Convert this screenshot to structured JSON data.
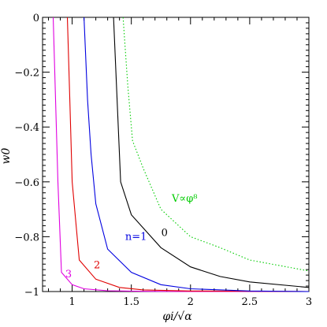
{
  "chart_data": {
    "type": "line",
    "xlabel": "φi/√α",
    "ylabel": "w0",
    "xlim": [
      0.75,
      3.0
    ],
    "ylim": [
      -1.0,
      0.0
    ],
    "x_ticks": [
      1,
      1.5,
      2,
      2.5,
      3
    ],
    "x_tick_labels": [
      "1",
      "1.5",
      "2",
      "2.5",
      "3"
    ],
    "y_ticks": [
      0,
      -0.2,
      -0.4,
      -0.6,
      -0.8,
      -1
    ],
    "y_tick_labels": [
      "0",
      "−0.2",
      "−0.4",
      "−0.6",
      "−0.8",
      "−1"
    ],
    "grid": false,
    "series": [
      {
        "name": "3",
        "color": "#e000e0",
        "style": "solid",
        "label_at": [
          0.97,
          -0.948
        ],
        "points": [
          [
            0.84,
            0.0
          ],
          [
            0.86,
            -0.3
          ],
          [
            0.88,
            -0.6
          ],
          [
            0.91,
            -0.93
          ],
          [
            1.0,
            -0.975
          ],
          [
            1.1,
            -0.99
          ],
          [
            1.3,
            -0.997
          ],
          [
            1.6,
            -0.999
          ],
          [
            2.0,
            -1.0
          ],
          [
            3.0,
            -1.0
          ]
        ]
      },
      {
        "name": "2",
        "color": "#e00000",
        "style": "solid",
        "label_at": [
          1.21,
          -0.915
        ],
        "points": [
          [
            0.96,
            0.0
          ],
          [
            0.98,
            -0.3
          ],
          [
            1.0,
            -0.6
          ],
          [
            1.06,
            -0.885
          ],
          [
            1.2,
            -0.955
          ],
          [
            1.4,
            -0.985
          ],
          [
            1.6,
            -0.994
          ],
          [
            2.0,
            -0.998
          ],
          [
            3.0,
            -1.0
          ]
        ]
      },
      {
        "name": "n=1",
        "color": "#0000e0",
        "style": "solid",
        "label_at": [
          1.54,
          -0.812
        ],
        "points": [
          [
            1.1,
            0.0
          ],
          [
            1.13,
            -0.3
          ],
          [
            1.16,
            -0.5
          ],
          [
            1.2,
            -0.68
          ],
          [
            1.3,
            -0.845
          ],
          [
            1.5,
            -0.93
          ],
          [
            1.75,
            -0.975
          ],
          [
            2.0,
            -0.99
          ],
          [
            2.5,
            -0.998
          ],
          [
            3.0,
            -1.0
          ]
        ]
      },
      {
        "name": "0",
        "color": "#000000",
        "style": "solid",
        "label_at": [
          1.78,
          -0.797
        ],
        "points": [
          [
            1.35,
            0.0
          ],
          [
            1.38,
            -0.3
          ],
          [
            1.41,
            -0.6
          ],
          [
            1.5,
            -0.72
          ],
          [
            1.75,
            -0.84
          ],
          [
            2.0,
            -0.91
          ],
          [
            2.25,
            -0.945
          ],
          [
            2.5,
            -0.965
          ],
          [
            3.0,
            -0.985
          ]
        ]
      },
      {
        "name": "V∝φ⁸",
        "color": "#00cc00",
        "style": "dotted",
        "label_at": [
          1.95,
          -0.672
        ],
        "points": [
          [
            1.43,
            0.0
          ],
          [
            1.47,
            -0.25
          ],
          [
            1.51,
            -0.45
          ],
          [
            1.6,
            -0.55
          ],
          [
            1.75,
            -0.7
          ],
          [
            2.0,
            -0.8
          ],
          [
            2.25,
            -0.84
          ],
          [
            2.5,
            -0.885
          ],
          [
            3.0,
            -0.925
          ]
        ]
      }
    ]
  }
}
